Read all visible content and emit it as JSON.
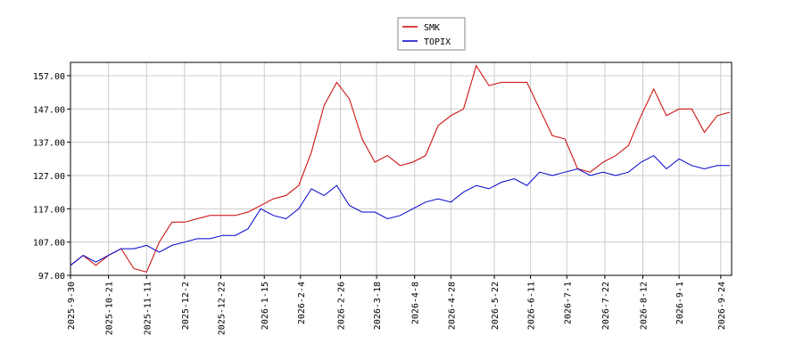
{
  "chart_data": {
    "type": "line",
    "x": [
      "2025-9-30",
      "2025-10-7",
      "2025-10-14",
      "2025-10-21",
      "2025-10-28",
      "2025-11-4",
      "2025-11-11",
      "2025-11-18",
      "2025-11-25",
      "2025-12-2",
      "2025-12-9",
      "2025-12-16",
      "2025-12-23",
      "2025-12-30",
      "2026-1-6",
      "2026-1-13",
      "2026-1-20",
      "2026-1-27",
      "2026-2-3",
      "2026-2-10",
      "2026-2-17",
      "2026-2-24",
      "2026-3-3",
      "2026-3-10",
      "2026-3-17",
      "2026-3-24",
      "2026-3-31",
      "2026-4-7",
      "2026-4-14",
      "2026-4-21",
      "2026-4-28",
      "2026-5-5",
      "2026-5-12",
      "2026-5-19",
      "2026-5-26",
      "2026-6-2",
      "2026-6-9",
      "2026-6-16",
      "2026-6-23",
      "2026-6-30",
      "2026-7-7",
      "2026-7-14",
      "2026-7-21",
      "2026-7-28",
      "2026-8-4",
      "2026-8-11",
      "2026-8-18",
      "2026-8-25",
      "2026-9-1",
      "2026-9-8",
      "2026-9-15",
      "2026-9-22",
      "2026-9-29"
    ],
    "series": [
      {
        "name": "SMK",
        "color": "#cc0000",
        "values": [
          100,
          103,
          100,
          103,
          105,
          99,
          98,
          107,
          113,
          113,
          114,
          115,
          115,
          115,
          116,
          118,
          120,
          121,
          124,
          134,
          148,
          155,
          150,
          138,
          131,
          133,
          130,
          131,
          133,
          142,
          145,
          147,
          160,
          154,
          155,
          155,
          155,
          147,
          139,
          138,
          129,
          128,
          131,
          133,
          136,
          145,
          153,
          145,
          147,
          147,
          140,
          145,
          146
        ]
      },
      {
        "name": "TOPIX",
        "color": "#0000cc",
        "values": [
          100,
          103,
          101,
          103,
          105,
          105,
          106,
          104,
          106,
          107,
          108,
          108,
          109,
          109,
          111,
          117,
          115,
          114,
          117,
          123,
          121,
          124,
          118,
          116,
          116,
          114,
          115,
          117,
          119,
          120,
          119,
          122,
          124,
          123,
          125,
          126,
          124,
          128,
          127,
          128,
          129,
          127,
          128,
          127,
          128,
          131,
          133,
          129,
          132,
          130,
          129,
          130,
          130
        ]
      }
    ],
    "xlim": [
      "2025-9-30",
      "2026-9-30"
    ],
    "xticks": [
      "2025-9-30",
      "2025-10-21",
      "2025-11-11",
      "2025-12-2",
      "2025-12-22",
      "2026-1-15",
      "2026-2-4",
      "2026-2-26",
      "2026-3-18",
      "2026-4-8",
      "2026-4-28",
      "2026-5-22",
      "2026-6-11",
      "2026-7-1",
      "2026-7-22",
      "2026-8-12",
      "2026-9-1",
      "2026-9-24"
    ],
    "ylim": [
      97,
      161
    ],
    "yticks": [
      {
        "value": 97,
        "label": "97.00"
      },
      {
        "value": 107,
        "label": "107.00"
      },
      {
        "value": 117,
        "label": "117.00"
      },
      {
        "value": 127,
        "label": "127.00"
      },
      {
        "value": 137,
        "label": "137.00"
      },
      {
        "value": 147,
        "label": "147.00"
      },
      {
        "value": 157,
        "label": "157.00"
      }
    ],
    "grid": true,
    "legend": "upper center"
  }
}
